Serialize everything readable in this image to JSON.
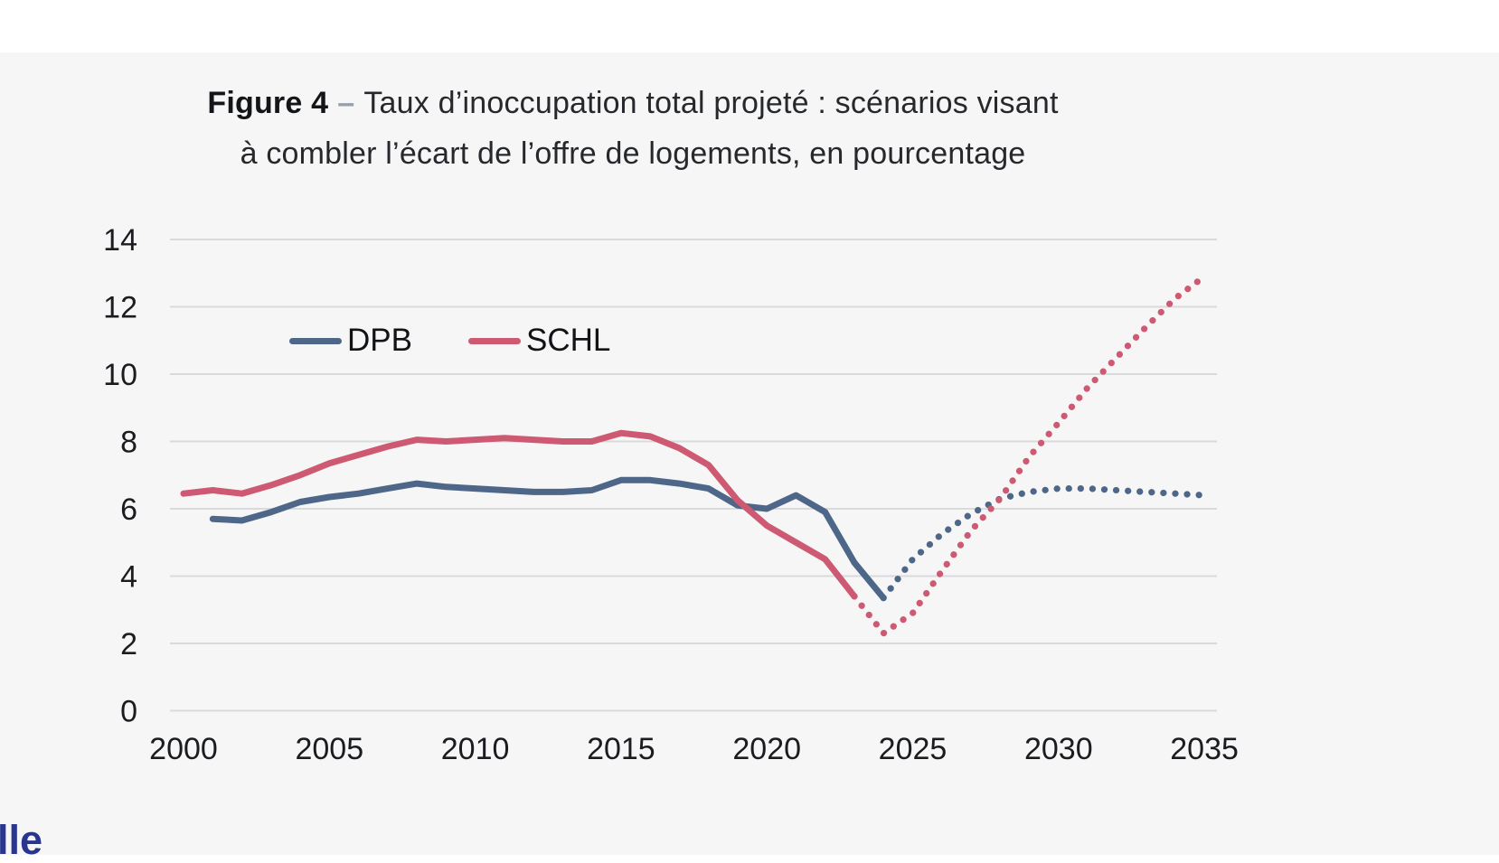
{
  "page": {
    "panel_background": "#f6f6f7",
    "background": "#ffffff",
    "footer_fragment": "lle",
    "footer_color": "#28368f"
  },
  "figure": {
    "label": "Figure 4",
    "separator": "–",
    "title_line1": "Taux d’inoccupation total projeté : scénarios visant",
    "title_line2": "à combler l’écart de l’offre de logements, en pourcentage"
  },
  "chart_data": {
    "type": "line",
    "title": "Taux d’inoccupation total projeté : scénarios visant à combler l’écart de l’offre de logements, en pourcentage",
    "xlabel": "",
    "ylabel": "",
    "unit": "pourcentage",
    "xlim": [
      2000,
      2035.5
    ],
    "ylim": [
      0,
      14
    ],
    "x_ticks": [
      2000,
      2005,
      2010,
      2015,
      2020,
      2025,
      2030,
      2035
    ],
    "y_ticks": [
      0,
      2,
      4,
      6,
      8,
      10,
      12,
      14
    ],
    "grid": "horizontal",
    "gridline_color": "#d9dadc",
    "tick_color": "#1a1c20",
    "legend_position": "inside-top-left",
    "series": [
      {
        "name": "DPB",
        "color": "#4e6789",
        "solid": {
          "years": [
            2001,
            2002,
            2003,
            2004,
            2005,
            2006,
            2007,
            2008,
            2009,
            2010,
            2011,
            2012,
            2013,
            2014,
            2015,
            2016,
            2017,
            2018,
            2019,
            2020,
            2021,
            2022,
            2023,
            2024
          ],
          "values": [
            5.7,
            5.65,
            5.9,
            6.2,
            6.35,
            6.45,
            6.6,
            6.75,
            6.65,
            6.6,
            6.55,
            6.5,
            6.5,
            6.55,
            6.85,
            6.85,
            6.75,
            6.6,
            6.1,
            6.0,
            6.4,
            5.9,
            4.4,
            3.35
          ]
        },
        "dotted": {
          "years": [
            2024,
            2025,
            2026,
            2027,
            2028,
            2029,
            2030,
            2031,
            2032,
            2033,
            2034,
            2035
          ],
          "values": [
            3.35,
            4.5,
            5.25,
            5.85,
            6.3,
            6.5,
            6.6,
            6.6,
            6.55,
            6.5,
            6.45,
            6.4
          ]
        }
      },
      {
        "name": "SCHL",
        "color": "#cd5a72",
        "solid": {
          "years": [
            2000,
            2001,
            2002,
            2003,
            2004,
            2005,
            2006,
            2007,
            2008,
            2009,
            2010,
            2011,
            2012,
            2013,
            2014,
            2015,
            2016,
            2017,
            2018,
            2019,
            2020,
            2021,
            2022,
            2023
          ],
          "values": [
            6.45,
            6.55,
            6.45,
            6.7,
            7.0,
            7.35,
            7.6,
            7.85,
            8.05,
            8.0,
            8.05,
            8.1,
            8.05,
            8.0,
            8.0,
            8.25,
            8.15,
            7.8,
            7.3,
            6.25,
            5.5,
            5.0,
            4.5,
            3.4
          ]
        },
        "dotted": {
          "years": [
            2023,
            2024,
            2025,
            2026,
            2027,
            2028,
            2029,
            2030,
            2031,
            2032,
            2033,
            2034,
            2035
          ],
          "values": [
            3.4,
            2.3,
            2.9,
            4.15,
            5.35,
            6.3,
            7.55,
            8.55,
            9.6,
            10.5,
            11.4,
            12.25,
            12.9
          ]
        }
      }
    ]
  }
}
